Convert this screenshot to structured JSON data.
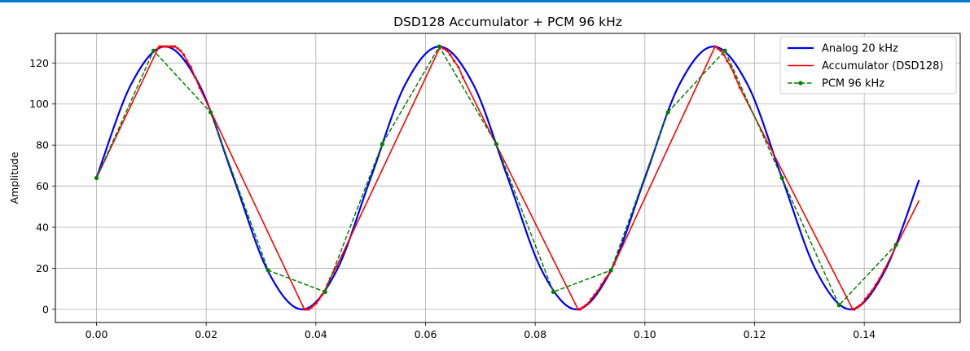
{
  "accent_color": "#0078d4",
  "chart_data": {
    "type": "line",
    "title": "DSD128 Accumulator + PCM 96 kHz",
    "xlabel": "",
    "ylabel": "Amplitude",
    "xlim": [
      -0.0075,
      0.1575
    ],
    "ylim": [
      -6.4,
      134.4
    ],
    "xticks": [
      0.0,
      0.02,
      0.04,
      0.06,
      0.08,
      0.1,
      0.12,
      0.14
    ],
    "xtick_labels": [
      "0.00",
      "0.02",
      "0.04",
      "0.06",
      "0.08",
      "0.10",
      "0.12",
      "0.14"
    ],
    "yticks": [
      0,
      20,
      40,
      60,
      80,
      100,
      120
    ],
    "ytick_labels": [
      "0",
      "20",
      "40",
      "60",
      "80",
      "100",
      "120"
    ],
    "grid": true,
    "legend_position": "top-right",
    "series": [
      {
        "name": "Analog 20 kHz",
        "color": "#0000ff",
        "style": "solid",
        "x": [
          0.0,
          0.00625,
          0.0125,
          0.01875,
          0.025,
          0.03125,
          0.0375,
          0.04375,
          0.05,
          0.05625,
          0.0625,
          0.06875,
          0.075,
          0.08125,
          0.0875,
          0.09375,
          0.1,
          0.10625,
          0.1125,
          0.11875,
          0.125,
          0.13125,
          0.1375,
          0.14375,
          0.15
        ],
        "y": [
          64.0,
          109.3,
          128.0,
          109.3,
          64.0,
          18.7,
          0.0,
          18.7,
          64.0,
          109.3,
          128.0,
          109.3,
          64.0,
          18.7,
          0.0,
          18.7,
          64.0,
          109.3,
          128.0,
          109.3,
          64.0,
          18.7,
          0.0,
          18.7,
          63.0
        ]
      },
      {
        "name": "Accumulator (DSD128)",
        "color": "#ff0000",
        "style": "solid",
        "x": [
          0.0,
          0.0112,
          0.0115,
          0.0119,
          0.0124,
          0.0129,
          0.0134,
          0.0139,
          0.0143,
          0.0148,
          0.0153,
          0.0159,
          0.0165,
          0.0172,
          0.018,
          0.0188,
          0.0379,
          0.0383,
          0.0387,
          0.0392,
          0.0396,
          0.0401,
          0.0406,
          0.0411,
          0.0416,
          0.0421,
          0.0426,
          0.0432,
          0.0438,
          0.0627,
          0.0633,
          0.0639,
          0.0645,
          0.0652,
          0.066,
          0.0668,
          0.0878,
          0.0882,
          0.0887,
          0.0892,
          0.0897,
          0.0902,
          0.0908,
          0.0914,
          0.0921,
          0.0928,
          0.0936,
          0.0944,
          0.1128,
          0.1133,
          0.1138,
          0.1144,
          0.115,
          0.1157,
          0.1165,
          0.1173,
          0.1379,
          0.1382,
          0.1387,
          0.1392,
          0.1397,
          0.1402,
          0.1408,
          0.1414,
          0.1421,
          0.1428,
          0.1436,
          0.15
        ],
        "y": [
          64.0,
          127.0,
          128.0,
          128.0,
          128.0,
          128.0,
          128.0,
          128.0,
          128.0,
          127.0,
          126.0,
          124.0,
          121.0,
          118.0,
          113.0,
          108.0,
          0.0,
          0.0,
          0.0,
          1.0,
          2.0,
          3.0,
          5.0,
          7.0,
          9.0,
          12.0,
          15.0,
          18.0,
          21.0,
          128.0,
          127.0,
          126.0,
          124.0,
          121.0,
          118.0,
          113.0,
          0.0,
          0.0,
          1.0,
          2.0,
          3.0,
          5.0,
          7.0,
          9.0,
          12.0,
          15.0,
          18.0,
          22.0,
          128.0,
          127.0,
          126.0,
          124.0,
          121.0,
          118.0,
          113.0,
          108.0,
          0.0,
          0.0,
          1.0,
          2.0,
          3.0,
          5.0,
          7.0,
          9.0,
          12.0,
          15.0,
          19.0,
          53.0
        ]
      },
      {
        "name": "PCM 96 kHz",
        "color": "#008000",
        "style": "dashed",
        "marker": "circle",
        "x": [
          0.0,
          0.0104,
          0.0208,
          0.0313,
          0.0417,
          0.0521,
          0.0625,
          0.0729,
          0.0833,
          0.0938,
          0.1042,
          0.1146,
          0.125,
          0.1354,
          0.1458
        ],
        "y": [
          64.0,
          126.0,
          96.0,
          19.0,
          8.5,
          80.5,
          128.0,
          80.5,
          8.5,
          19.0,
          96.0,
          126.0,
          64.0,
          2.0,
          31.5
        ]
      }
    ]
  }
}
